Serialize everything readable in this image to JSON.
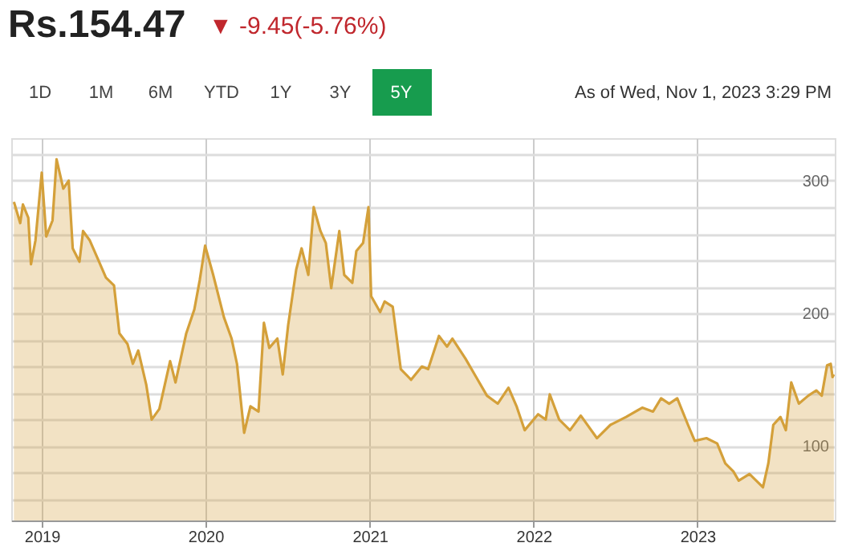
{
  "chart_data": {
    "type": "area",
    "title": "Rs.154.47",
    "subtitle": "▼ -9.45(-5.76%)",
    "annotations": [
      "1D",
      "1M",
      "6M",
      "YTD",
      "1Y",
      "3Y",
      "5Y",
      "As of Wed, Nov 1, 2023 3:29 PM"
    ],
    "x": [
      "2018-10-31",
      "2018-11-14",
      "2018-11-20",
      "2018-12-02",
      "2018-12-08",
      "2018-12-18",
      "2019-01-01",
      "2019-01-11",
      "2019-01-25",
      "2019-02-03",
      "2019-02-18",
      "2019-03-02",
      "2019-03-11",
      "2019-03-26",
      "2019-04-03",
      "2019-04-18",
      "2019-05-06",
      "2019-05-24",
      "2019-06-11",
      "2019-06-23",
      "2019-07-11",
      "2019-07-23",
      "2019-08-04",
      "2019-08-22",
      "2019-09-03",
      "2019-09-20",
      "2019-10-14",
      "2019-10-26",
      "2019-11-19",
      "2019-12-07",
      "2019-12-19",
      "2019-12-31",
      "2020-01-18",
      "2020-02-11",
      "2020-02-28",
      "2020-03-11",
      "2020-03-27",
      "2020-04-10",
      "2020-04-28",
      "2020-05-10",
      "2020-05-22",
      "2020-06-09",
      "2020-06-21",
      "2020-07-03",
      "2020-07-21",
      "2020-08-02",
      "2020-08-17",
      "2020-08-29",
      "2020-09-13",
      "2020-09-25",
      "2020-10-07",
      "2020-10-25",
      "2020-11-05",
      "2020-11-23",
      "2020-12-02",
      "2020-12-17",
      "2020-12-29",
      "2021-01-04",
      "2021-01-24",
      "2021-02-03",
      "2021-02-21",
      "2021-03-11",
      "2021-04-03",
      "2021-04-27",
      "2021-05-11",
      "2021-06-04",
      "2021-06-22",
      "2021-07-04",
      "2021-08-02",
      "2021-08-26",
      "2021-09-19",
      "2021-10-13",
      "2021-11-06",
      "2021-11-24",
      "2021-12-12",
      "2022-01-11",
      "2022-01-28",
      "2022-02-06",
      "2022-02-27",
      "2022-03-23",
      "2022-04-16",
      "2022-05-22",
      "2022-06-21",
      "2022-07-26",
      "2022-08-31",
      "2022-09-24",
      "2022-10-12",
      "2022-10-30",
      "2022-11-17",
      "2022-12-11",
      "2022-12-26",
      "2023-01-21",
      "2023-02-14",
      "2023-03-04",
      "2023-03-22",
      "2023-04-03",
      "2023-04-27",
      "2023-05-27",
      "2023-06-08",
      "2023-06-19",
      "2023-07-05",
      "2023-07-17",
      "2023-07-29",
      "2023-08-15",
      "2023-09-05",
      "2023-09-23",
      "2023-10-05",
      "2023-10-17",
      "2023-10-25",
      "2023-10-29",
      "2023-11-01"
    ],
    "series": [
      {
        "color": "#d4a03a",
        "values": [
          284,
          268,
          282,
          272,
          237,
          255,
          306,
          258,
          270,
          316,
          294,
          300,
          249,
          239,
          262,
          255,
          241,
          227,
          221,
          185,
          177,
          162,
          172,
          146,
          120,
          128,
          164,
          148,
          185,
          203,
          225,
          251,
          229,
          197,
          181,
          162,
          110,
          130,
          126,
          193,
          174,
          181,
          154,
          191,
          233,
          249,
          229,
          280,
          262,
          253,
          219,
          262,
          229,
          223,
          247,
          253,
          280,
          213,
          201,
          209,
          205,
          158,
          150,
          160,
          158,
          183,
          175,
          181,
          166,
          152,
          138,
          132,
          144,
          130,
          112,
          124,
          120,
          139,
          120,
          112,
          123,
          106,
          116,
          122,
          129,
          126,
          136,
          132,
          136,
          116,
          104,
          106,
          102,
          87,
          81,
          74,
          79,
          69,
          87,
          116,
          122,
          112,
          148,
          132,
          138,
          142,
          138,
          161,
          162,
          152,
          154
        ]
      }
    ],
    "xlim": [
      "2018-10-25",
      "2023-11-03"
    ],
    "xticks": [
      "2019",
      "2020",
      "2021",
      "2022",
      "2023"
    ],
    "ylim": [
      44,
      332
    ],
    "yticks": [
      {
        "value": 60,
        "label": null
      },
      {
        "value": 80,
        "label": null
      },
      100,
      {
        "value": 120,
        "label": null
      },
      {
        "value": 140,
        "label": null
      },
      {
        "value": 160,
        "label": null
      },
      {
        "value": 180,
        "label": null
      },
      200,
      {
        "value": 220,
        "label": null
      },
      {
        "value": 240,
        "label": null
      },
      {
        "value": 260,
        "label": null
      },
      {
        "value": 280,
        "label": null
      },
      300,
      {
        "value": 320,
        "label": null
      }
    ],
    "grid": true
  }
}
